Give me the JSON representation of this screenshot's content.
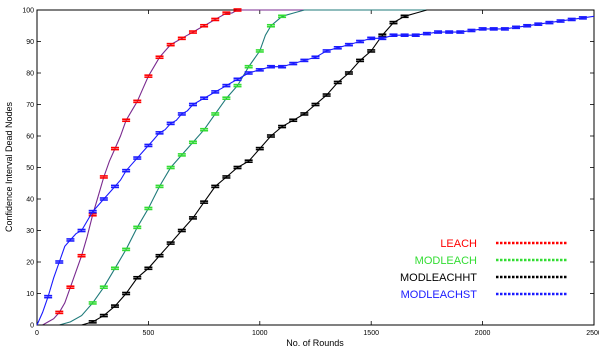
{
  "chart_data": {
    "type": "line",
    "xlabel": "No. of Rounds",
    "ylabel": "Confidence Interval Dead Nodes",
    "xlim": [
      0,
      2500
    ],
    "ylim": [
      0,
      100
    ],
    "xticks": [
      0,
      500,
      1000,
      1500,
      2000,
      2500
    ],
    "yticks": [
      0,
      10,
      20,
      30,
      40,
      50,
      60,
      70,
      80,
      90,
      100
    ],
    "grid": false,
    "legend_position": "bottom-right",
    "series": [
      {
        "name": "LEACH",
        "color": "#ff0000",
        "line_color": "#7a2a8f",
        "points": [
          [
            0,
            0
          ],
          [
            25,
            0
          ],
          [
            50,
            1
          ],
          [
            75,
            2
          ],
          [
            100,
            4
          ],
          [
            125,
            7
          ],
          [
            150,
            12
          ],
          [
            175,
            17
          ],
          [
            200,
            22
          ],
          [
            225,
            28
          ],
          [
            250,
            35
          ],
          [
            275,
            41
          ],
          [
            300,
            47
          ],
          [
            325,
            52
          ],
          [
            350,
            56
          ],
          [
            375,
            60
          ],
          [
            400,
            65
          ],
          [
            425,
            68
          ],
          [
            450,
            71
          ],
          [
            475,
            75
          ],
          [
            500,
            79
          ],
          [
            525,
            82
          ],
          [
            550,
            85
          ],
          [
            575,
            87
          ],
          [
            600,
            89
          ],
          [
            625,
            90
          ],
          [
            650,
            91
          ],
          [
            675,
            92
          ],
          [
            700,
            93
          ],
          [
            725,
            94
          ],
          [
            750,
            95
          ],
          [
            775,
            96
          ],
          [
            800,
            97
          ],
          [
            825,
            98
          ],
          [
            850,
            99
          ],
          [
            875,
            99
          ],
          [
            900,
            100
          ],
          [
            2500,
            100
          ]
        ],
        "error_bars_at": [
          100,
          150,
          200,
          250,
          300,
          350,
          400,
          450,
          500,
          550,
          600,
          650,
          700,
          750,
          800,
          850,
          900
        ]
      },
      {
        "name": "MODLEACH",
        "color": "#33dd33",
        "line_color": "#1f7a7a",
        "points": [
          [
            0,
            0
          ],
          [
            100,
            0
          ],
          [
            150,
            1
          ],
          [
            200,
            3
          ],
          [
            225,
            5
          ],
          [
            250,
            7
          ],
          [
            300,
            12
          ],
          [
            350,
            18
          ],
          [
            400,
            24
          ],
          [
            450,
            31
          ],
          [
            500,
            37
          ],
          [
            550,
            44
          ],
          [
            600,
            50
          ],
          [
            650,
            54
          ],
          [
            700,
            58
          ],
          [
            750,
            62
          ],
          [
            800,
            67
          ],
          [
            850,
            72
          ],
          [
            900,
            76
          ],
          [
            950,
            82
          ],
          [
            1000,
            87
          ],
          [
            1025,
            92
          ],
          [
            1050,
            95
          ],
          [
            1100,
            98
          ],
          [
            1150,
            99
          ],
          [
            1200,
            100
          ],
          [
            2500,
            100
          ]
        ],
        "error_bars_at": [
          250,
          300,
          350,
          400,
          450,
          500,
          550,
          600,
          650,
          700,
          750,
          800,
          850,
          900,
          950,
          1000,
          1050,
          1100
        ]
      },
      {
        "name": "MODLEACHHT",
        "color": "#000000",
        "line_color": "#000000",
        "points": [
          [
            0,
            0
          ],
          [
            200,
            0
          ],
          [
            250,
            1
          ],
          [
            300,
            3
          ],
          [
            350,
            6
          ],
          [
            400,
            10
          ],
          [
            450,
            15
          ],
          [
            500,
            18
          ],
          [
            550,
            22
          ],
          [
            600,
            26
          ],
          [
            650,
            30
          ],
          [
            700,
            34
          ],
          [
            750,
            39
          ],
          [
            800,
            44
          ],
          [
            850,
            47
          ],
          [
            900,
            50
          ],
          [
            950,
            52
          ],
          [
            1000,
            56
          ],
          [
            1050,
            60
          ],
          [
            1100,
            63
          ],
          [
            1150,
            65
          ],
          [
            1200,
            67
          ],
          [
            1250,
            70
          ],
          [
            1300,
            73
          ],
          [
            1350,
            77
          ],
          [
            1400,
            80
          ],
          [
            1450,
            84
          ],
          [
            1500,
            87
          ],
          [
            1550,
            92
          ],
          [
            1600,
            96
          ],
          [
            1650,
            98
          ],
          [
            1700,
            99
          ],
          [
            1750,
            100
          ],
          [
            2500,
            100
          ]
        ],
        "error_bars_at": [
          250,
          300,
          350,
          400,
          450,
          500,
          550,
          600,
          650,
          700,
          750,
          800,
          850,
          900,
          950,
          1000,
          1050,
          1100,
          1150,
          1200,
          1250,
          1300,
          1350,
          1400,
          1450,
          1500,
          1550,
          1600,
          1650
        ]
      },
      {
        "name": "MODLEACHST",
        "color": "#1a1aff",
        "line_color": "#1a1aff",
        "points": [
          [
            0,
            0
          ],
          [
            25,
            4
          ],
          [
            50,
            9
          ],
          [
            75,
            15
          ],
          [
            100,
            20
          ],
          [
            125,
            25
          ],
          [
            150,
            27
          ],
          [
            175,
            29
          ],
          [
            200,
            30
          ],
          [
            225,
            33
          ],
          [
            250,
            36
          ],
          [
            275,
            38
          ],
          [
            300,
            40
          ],
          [
            325,
            42
          ],
          [
            350,
            44
          ],
          [
            375,
            46
          ],
          [
            400,
            49
          ],
          [
            425,
            51
          ],
          [
            450,
            53
          ],
          [
            475,
            55
          ],
          [
            500,
            57
          ],
          [
            525,
            59
          ],
          [
            550,
            61
          ],
          [
            575,
            62
          ],
          [
            600,
            64
          ],
          [
            625,
            65
          ],
          [
            650,
            67
          ],
          [
            675,
            68
          ],
          [
            700,
            70
          ],
          [
            725,
            71
          ],
          [
            750,
            72
          ],
          [
            775,
            73
          ],
          [
            800,
            74
          ],
          [
            825,
            75
          ],
          [
            850,
            76
          ],
          [
            875,
            77
          ],
          [
            900,
            78
          ],
          [
            925,
            79
          ],
          [
            950,
            80
          ],
          [
            1000,
            81
          ],
          [
            1050,
            82
          ],
          [
            1100,
            82
          ],
          [
            1150,
            83
          ],
          [
            1200,
            84
          ],
          [
            1250,
            85
          ],
          [
            1300,
            87
          ],
          [
            1350,
            88
          ],
          [
            1400,
            89
          ],
          [
            1450,
            90
          ],
          [
            1500,
            91
          ],
          [
            1550,
            91
          ],
          [
            1600,
            92
          ],
          [
            1700,
            92
          ],
          [
            1800,
            93
          ],
          [
            1900,
            93
          ],
          [
            2000,
            94
          ],
          [
            2100,
            94
          ],
          [
            2200,
            95
          ],
          [
            2300,
            96
          ],
          [
            2400,
            97
          ],
          [
            2500,
            98
          ]
        ],
        "error_bars_at": [
          50,
          100,
          150,
          200,
          250,
          300,
          350,
          400,
          450,
          500,
          550,
          600,
          650,
          700,
          750,
          800,
          850,
          900,
          950,
          1000,
          1050,
          1100,
          1150,
          1200,
          1250,
          1300,
          1350,
          1400,
          1450,
          1500,
          1550,
          1600,
          1650,
          1700,
          1750,
          1800,
          1850,
          1900,
          1950,
          2000,
          2050,
          2100,
          2150,
          2200,
          2250,
          2300,
          2350,
          2400,
          2450
        ]
      }
    ]
  }
}
